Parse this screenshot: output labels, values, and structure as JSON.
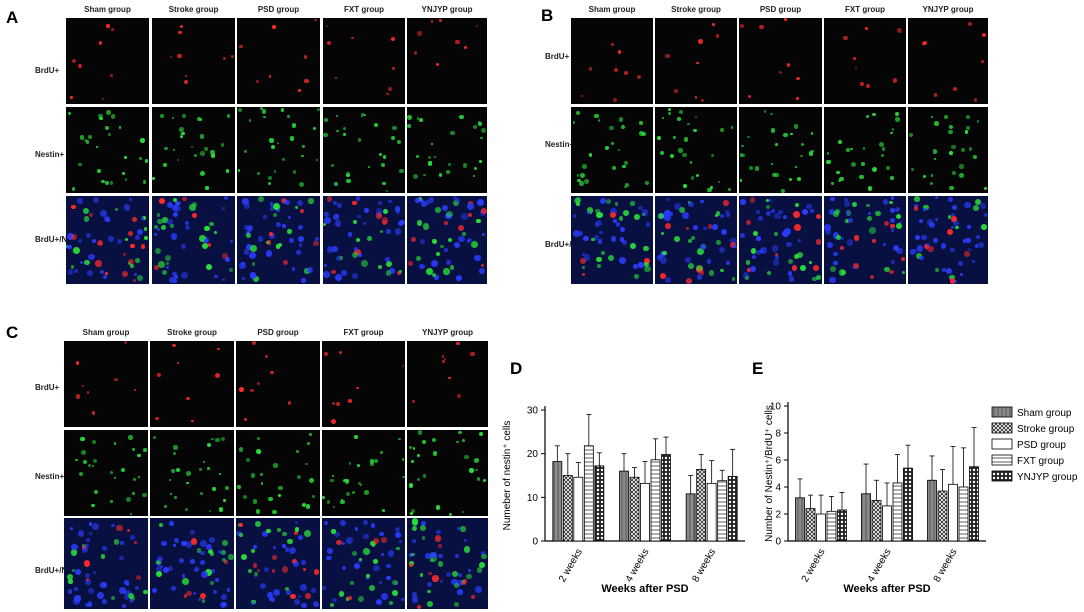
{
  "panels": {
    "A": {
      "letter": "A"
    },
    "B": {
      "letter": "B"
    },
    "C": {
      "letter": "C"
    },
    "D": {
      "letter": "D"
    },
    "E": {
      "letter": "E"
    }
  },
  "groups": [
    "Sham group",
    "Stroke group",
    "PSD group",
    "FXT group",
    "YNJYP  group"
  ],
  "rows": {
    "A": [
      "BrdU+",
      "Nestin+",
      "BrdU+/Nestin+"
    ],
    "B": [
      "BrdU+",
      "Nestin+",
      "BrdU+/Nestin+"
    ],
    "C": [
      "BrdU+",
      "Nestin+",
      "BrdU+/Nestin+"
    ]
  },
  "colors": {
    "sham": "#9a9a9a",
    "stroke": "#ffffff",
    "psd": "#f2f2f2",
    "fxt": "#dcdcdc",
    "ynjyp": "#cfcfcf",
    "brdu": "#ff2a2a",
    "nestin": "#27e23a",
    "dapi": "#2a3cff"
  },
  "legend": [
    "Sham  group",
    "Stroke group",
    "PSD group",
    "FXT group",
    "YNJYP group"
  ],
  "chart_data": [
    {
      "type": "bar",
      "panel": "D",
      "categories": [
        "2 weeks",
        "4 weeks",
        "8 weeks"
      ],
      "ylabel": "Numeber of nestin⁺ cells",
      "xlabel": "Weeks after PSD",
      "ylim": [
        0,
        30
      ],
      "yticks": [
        0,
        10,
        20,
        30
      ],
      "series": [
        {
          "name": "Sham  group",
          "values": [
            18.2,
            16.0,
            10.8
          ],
          "errors": [
            3.6,
            4.0,
            4.2
          ]
        },
        {
          "name": "Stroke group",
          "values": [
            15.0,
            14.6,
            16.4
          ],
          "errors": [
            5.0,
            2.2,
            3.4
          ]
        },
        {
          "name": "PSD group",
          "values": [
            14.6,
            13.2,
            13.2
          ],
          "errors": [
            3.4,
            5.0,
            5.2
          ]
        },
        {
          "name": "FXT group",
          "values": [
            21.8,
            18.6,
            13.8
          ],
          "errors": [
            7.2,
            4.8,
            2.4
          ]
        },
        {
          "name": "YNJYP group",
          "values": [
            17.2,
            19.8,
            14.8
          ],
          "errors": [
            3.0,
            4.0,
            6.2
          ]
        }
      ]
    },
    {
      "type": "bar",
      "panel": "E",
      "categories": [
        "2 weeks",
        "4 weeks",
        "8 weeks"
      ],
      "ylabel": "Number of Nestin⁺/BrdU⁺ cells",
      "xlabel": "Weeks after PSD",
      "ylim": [
        0,
        10
      ],
      "yticks": [
        0,
        2,
        4,
        6,
        8,
        10
      ],
      "series": [
        {
          "name": "Sham  group",
          "values": [
            3.2,
            3.5,
            4.5
          ],
          "errors": [
            1.4,
            2.2,
            1.8
          ]
        },
        {
          "name": "Stroke group",
          "values": [
            2.4,
            3.0,
            3.7
          ],
          "errors": [
            1.0,
            1.5,
            1.6
          ]
        },
        {
          "name": "PSD group",
          "values": [
            2.0,
            2.6,
            4.2
          ],
          "errors": [
            1.4,
            1.7,
            2.8
          ]
        },
        {
          "name": "FXT group",
          "values": [
            2.2,
            4.3,
            4.0
          ],
          "errors": [
            1.1,
            2.1,
            2.9
          ]
        },
        {
          "name": "YNJYP group",
          "values": [
            2.3,
            5.4,
            5.5
          ],
          "errors": [
            1.3,
            1.7,
            2.9
          ]
        }
      ]
    }
  ]
}
